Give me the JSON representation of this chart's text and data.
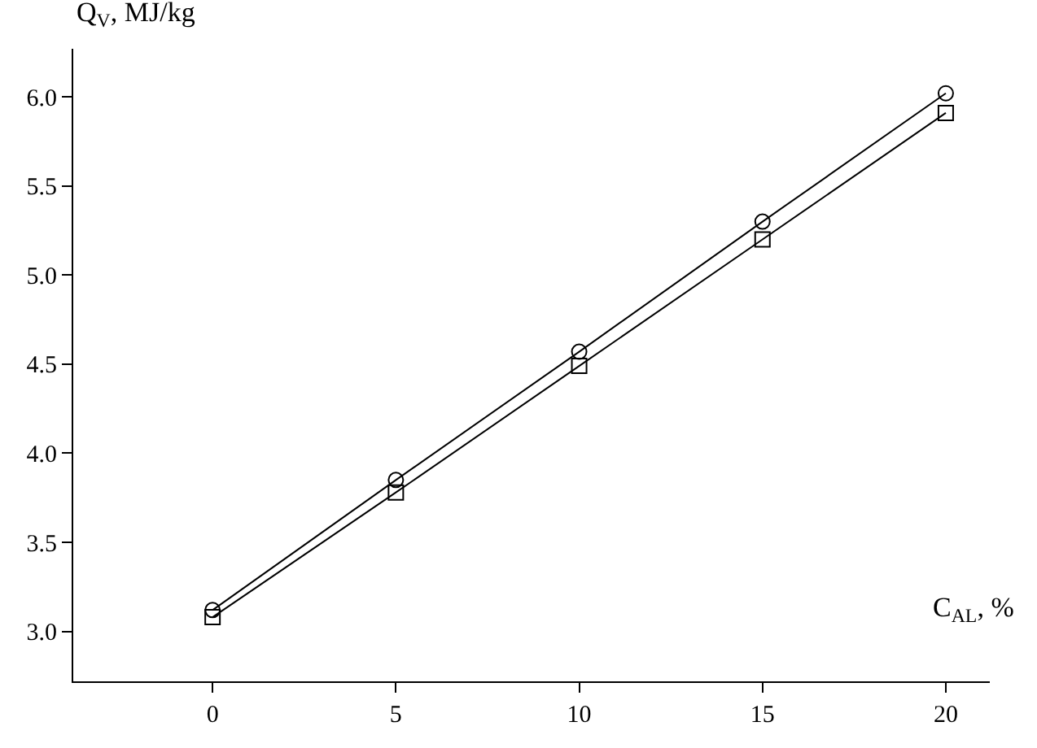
{
  "chart_data": {
    "type": "line",
    "xlabel": "C$_{AL}$, %",
    "ylabel": "Q$_{V}$, MJ/kg",
    "x": [
      0,
      5,
      10,
      15,
      20
    ],
    "series": [
      {
        "color": "#000000",
        "values": [
          3.12,
          3.85,
          4.57,
          5.3,
          6.02
        ],
        "marker": "circle"
      },
      {
        "color": "#000000",
        "values": [
          3.08,
          3.78,
          4.49,
          5.2,
          5.91
        ],
        "marker": "square"
      }
    ],
    "xlim": [
      -3.8,
      21.2
    ],
    "xticks": [
      0,
      5,
      10,
      15,
      20
    ],
    "ylim": [
      2.72,
      6.27
    ],
    "yticks": [
      {
        "value": 3,
        "label": "3.0"
      },
      {
        "value": 3.5,
        "label": "3.5"
      },
      {
        "value": 4,
        "label": "4.0"
      },
      {
        "value": 4.5,
        "label": "4.5"
      },
      {
        "value": 5,
        "label": "5.0"
      },
      {
        "value": 5.5,
        "label": "5.5"
      },
      {
        "value": 6,
        "label": "6.0"
      }
    ],
    "line_style": "solid"
  }
}
